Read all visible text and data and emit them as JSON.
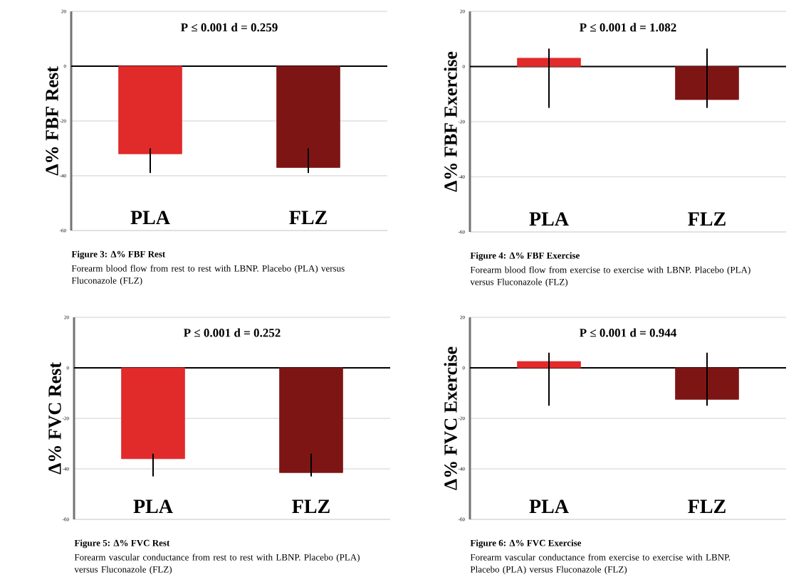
{
  "chart_data": [
    {
      "type": "bar",
      "title": "Figure 3: Δ% FBF Rest",
      "ylabel": "Δ% FBF Rest",
      "categories": [
        "PLA",
        "FLZ"
      ],
      "colors": [
        "#e12a2a",
        "#7e1515"
      ],
      "values": [
        -32,
        -37
      ],
      "errors": [
        [
          -39,
          -30
        ],
        [
          -39,
          -30
        ]
      ],
      "ylim": [
        -60,
        20
      ],
      "yticks": [
        -60,
        -40,
        -20,
        0,
        20
      ],
      "grid": "y",
      "ref_lines": [
        {
          "axis": "y",
          "value": 0,
          "color": "#000000"
        }
      ],
      "annotations": [
        "P ≤ 0.001  d = 0.259",
        "Forearm blood flow from rest to rest with LBNP. Placebo (PLA) versus Fluconazole (FLZ)"
      ]
    },
    {
      "type": "bar",
      "title": "Figure 4: Δ% FBF Exercise",
      "ylabel": "Δ% FBF Exercise",
      "categories": [
        "PLA",
        "FLZ"
      ],
      "colors": [
        "#e12a2a",
        "#7e1515"
      ],
      "values": [
        3,
        -12
      ],
      "errors": [
        [
          -15,
          6.5
        ],
        [
          -15,
          6.5
        ]
      ],
      "ylim": [
        -60,
        20
      ],
      "yticks": [
        -60,
        -40,
        -20,
        0,
        20
      ],
      "grid": "y",
      "ref_lines": [
        {
          "axis": "y",
          "value": 0,
          "color": "#000000"
        }
      ],
      "annotations": [
        "P ≤ 0.001  d = 1.082",
        "Forearm blood flow from exercise to exercise with LBNP. Placebo (PLA) versus Fluconazole (FLZ)"
      ]
    },
    {
      "type": "bar",
      "title": "Figure 5: Δ% FVC Rest",
      "ylabel": "Δ% FVC Rest",
      "categories": [
        "PLA",
        "FLZ"
      ],
      "colors": [
        "#e12a2a",
        "#7e1515"
      ],
      "values": [
        -36,
        -41.5
      ],
      "errors": [
        [
          -43,
          -34
        ],
        [
          -43,
          -34
        ]
      ],
      "ylim": [
        -60,
        20
      ],
      "yticks": [
        -60,
        -40,
        -20,
        0,
        20
      ],
      "grid": "y",
      "ref_lines": [
        {
          "axis": "y",
          "value": 0,
          "color": "#000000"
        }
      ],
      "annotations": [
        "P ≤ 0.001  d = 0.252",
        "Forearm vascular conductance from rest to rest with LBNP. Placebo (PLA) versus Fluconazole (FLZ)"
      ]
    },
    {
      "type": "bar",
      "title": "Figure 6: Δ% FVC Exercise",
      "ylabel": "Δ% FVC Exercise",
      "categories": [
        "PLA",
        "FLZ"
      ],
      "colors": [
        "#e12a2a",
        "#7e1515"
      ],
      "values": [
        2.5,
        -12.5
      ],
      "errors": [
        [
          -15,
          6
        ],
        [
          -15,
          6
        ]
      ],
      "ylim": [
        -60,
        20
      ],
      "yticks": [
        -60,
        -40,
        -20,
        0,
        20
      ],
      "grid": "y",
      "ref_lines": [
        {
          "axis": "y",
          "value": 0,
          "color": "#000000"
        }
      ],
      "annotations": [
        "P ≤ 0.001  d = 0.944",
        "Forearm vascular conductance from exercise to exercise with LBNP. Placebo (PLA) versus Fluconazole (FLZ)"
      ]
    }
  ]
}
